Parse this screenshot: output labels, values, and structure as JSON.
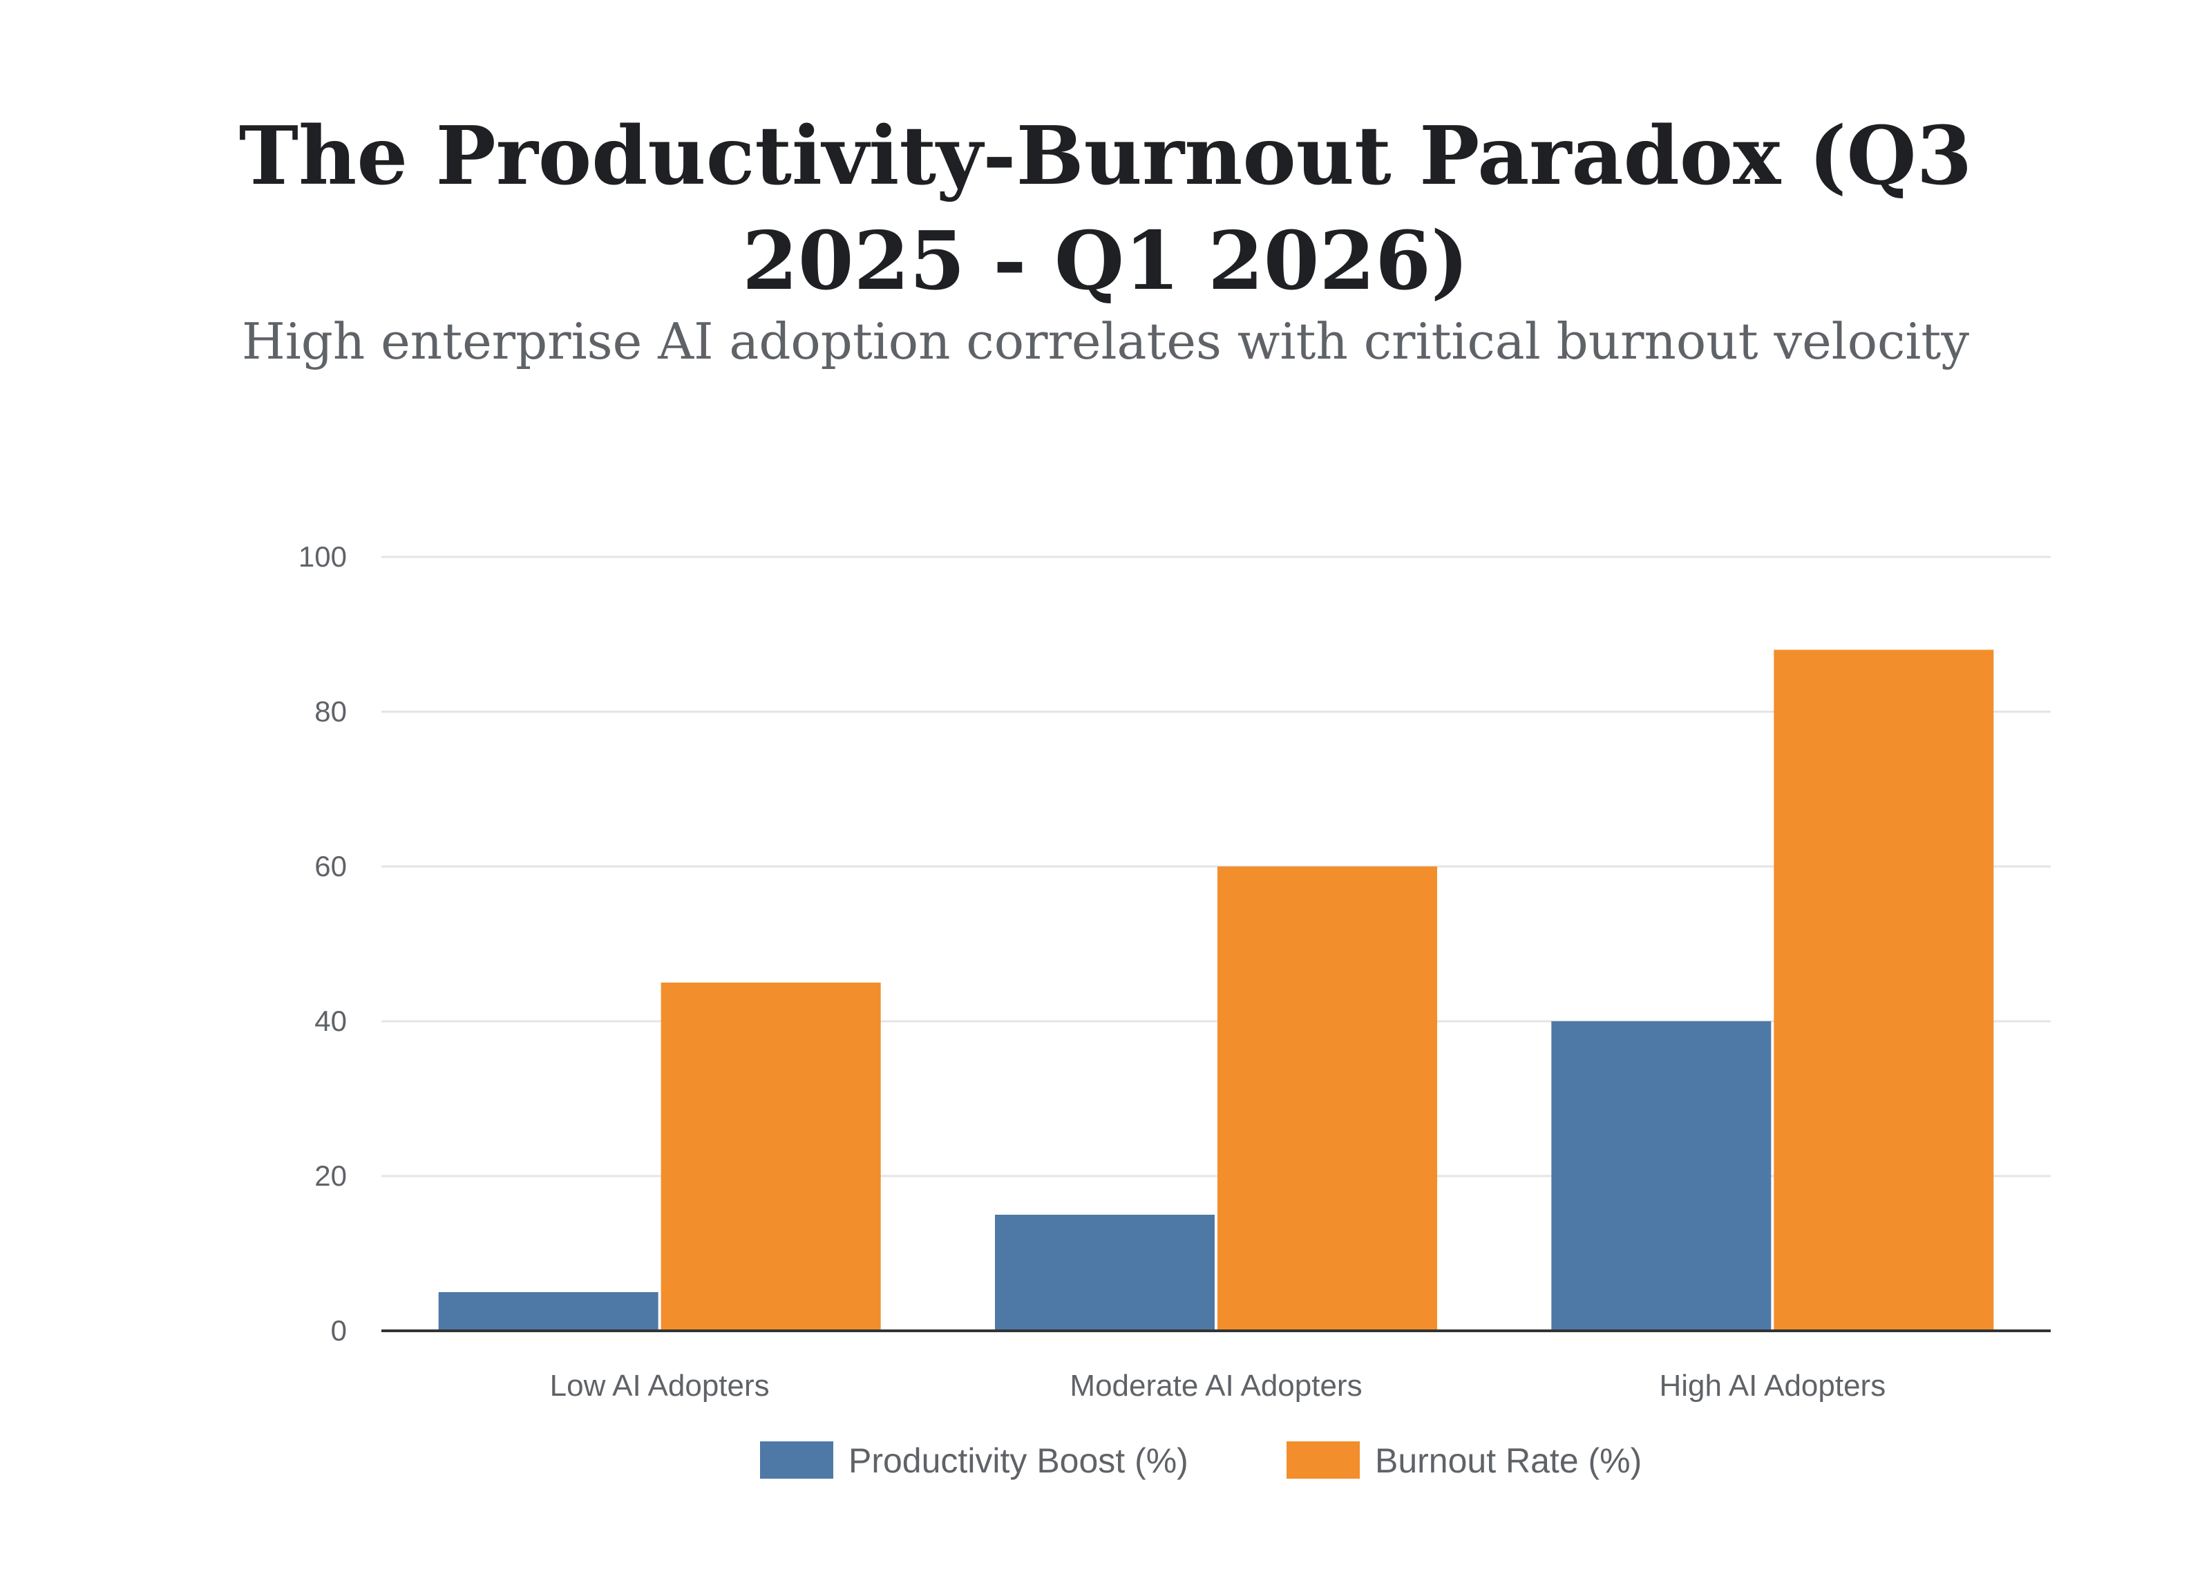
{
  "chart_data": {
    "type": "bar",
    "title": "The Productivity-Burnout Paradox (Q3 2025 - Q1 2026)",
    "subtitle": "High enterprise AI adoption correlates with critical burnout velocity",
    "xlabel": "",
    "ylabel": "",
    "ylim": [
      0,
      100
    ],
    "yticks": [
      0,
      20,
      40,
      60,
      80,
      100
    ],
    "grid": true,
    "legend_position": "bottom-center",
    "categories": [
      "Low AI Adopters",
      "Moderate AI Adopters",
      "High AI Adopters"
    ],
    "series": [
      {
        "name": "Productivity Boost (%)",
        "color": "#4e79a7",
        "values": [
          5,
          15,
          40
        ]
      },
      {
        "name": "Burnout Rate (%)",
        "color": "#f28e2b",
        "values": [
          45,
          60,
          88
        ]
      }
    ]
  }
}
